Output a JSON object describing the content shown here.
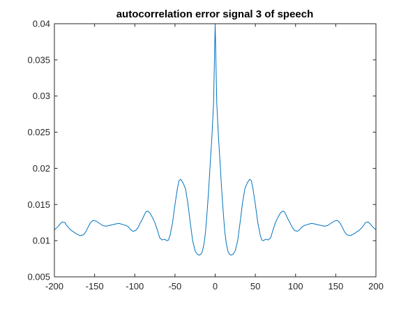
{
  "chart_data": {
    "type": "line",
    "title": "autocorrelation error signal 3 of speech",
    "xlabel": "",
    "ylabel": "",
    "xlim": [
      -200,
      200
    ],
    "ylim": [
      0.005,
      0.04
    ],
    "xticks": [
      -200,
      -150,
      -100,
      -50,
      0,
      50,
      100,
      150,
      200
    ],
    "yticks": [
      0.005,
      0.01,
      0.015,
      0.02,
      0.025,
      0.03,
      0.035,
      0.04
    ],
    "xtick_labels": [
      "-200",
      "-150",
      "-100",
      "-50",
      "0",
      "50",
      "100",
      "150",
      "200"
    ],
    "ytick_labels": [
      "0.005",
      "0.01",
      "0.015",
      "0.02",
      "0.025",
      "0.03",
      "0.035",
      "0.04"
    ],
    "grid": false,
    "line_color": "#0072bd",
    "series": [
      {
        "x": [
          0,
          2,
          4,
          6,
          8,
          10,
          12,
          14,
          16,
          18,
          20,
          22,
          25,
          28,
          31,
          34,
          37,
          40,
          43,
          45,
          47,
          50,
          53,
          56,
          58,
          60,
          63,
          66,
          69,
          72,
          75,
          78,
          81,
          84,
          86,
          88,
          90,
          93,
          96,
          99,
          102,
          105,
          108,
          111,
          114,
          117,
          120,
          124,
          128,
          132,
          136,
          140,
          144,
          148,
          152,
          155,
          158,
          161,
          164,
          168,
          172,
          176,
          180,
          184,
          187,
          190,
          193,
          196,
          200
        ],
        "y": [
          0.0405,
          0.029,
          0.0245,
          0.021,
          0.0172,
          0.014,
          0.0112,
          0.0095,
          0.0085,
          0.0081,
          0.008,
          0.0081,
          0.0086,
          0.01,
          0.0125,
          0.0152,
          0.0172,
          0.018,
          0.0185,
          0.0183,
          0.0172,
          0.015,
          0.0125,
          0.0108,
          0.0101,
          0.01,
          0.0102,
          0.0101,
          0.0104,
          0.0115,
          0.0125,
          0.0132,
          0.0138,
          0.0141,
          0.014,
          0.0136,
          0.0131,
          0.0125,
          0.0118,
          0.0114,
          0.0113,
          0.0115,
          0.0119,
          0.0121,
          0.0122,
          0.0123,
          0.0124,
          0.0123,
          0.0122,
          0.0121,
          0.012,
          0.0121,
          0.0124,
          0.0127,
          0.0128,
          0.0125,
          0.0119,
          0.0112,
          0.0108,
          0.0107,
          0.0109,
          0.0112,
          0.0115,
          0.012,
          0.0125,
          0.0126,
          0.0123,
          0.0119,
          0.0115
        ],
        "symmetric": true
      }
    ]
  }
}
